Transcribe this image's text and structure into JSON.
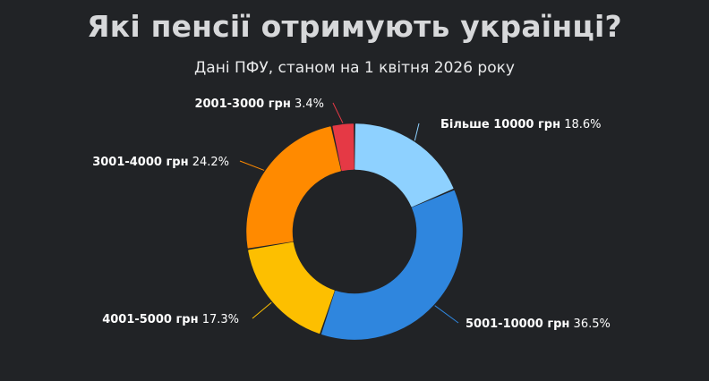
{
  "header": {
    "title": "Які пенсії отримують українці?",
    "subtitle": "Дані ПФУ, станом на 1 квітня 2026 року"
  },
  "chart_data": {
    "type": "pie",
    "title": "Які пенсії отримують українці?",
    "subtitle": "Дані ПФУ, станом на 1 квітня 2026 року",
    "donut": true,
    "unit": "%",
    "slices": [
      {
        "label": "Більше 10000 грн",
        "value": 18.6,
        "value_text": "18.6%",
        "color": "#8ed1ff"
      },
      {
        "label": "5001-10000 грн",
        "value": 36.5,
        "value_text": "36.5%",
        "color": "#2f86de"
      },
      {
        "label": "4001-5000 грн",
        "value": 17.3,
        "value_text": "17.3%",
        "color": "#fdbf00"
      },
      {
        "label": "3001-4000 грн",
        "value": 24.2,
        "value_text": "24.2%",
        "color": "#ff8a00"
      },
      {
        "label": "2001-3000 грн",
        "value": 3.4,
        "value_text": "3.4%",
        "color": "#e53945"
      }
    ]
  }
}
